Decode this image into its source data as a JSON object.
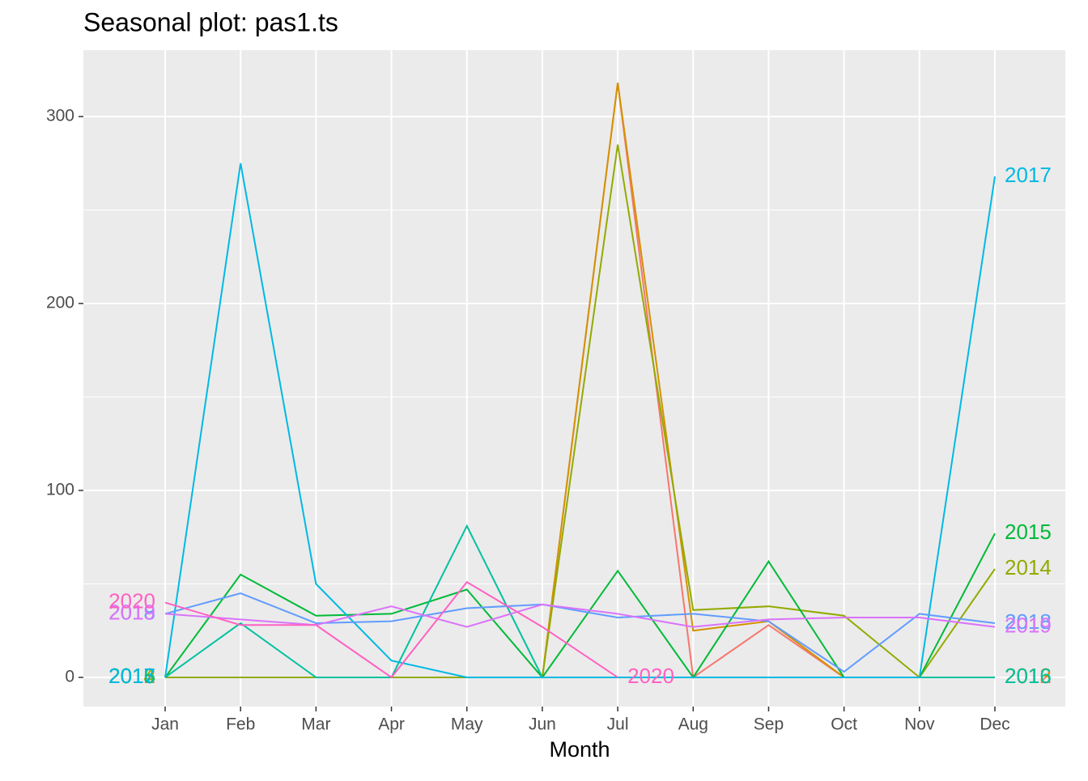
{
  "chart_data": {
    "type": "line",
    "title": "Seasonal plot: pas1.ts",
    "x_label": "Month",
    "categories": [
      "Jan",
      "Feb",
      "Mar",
      "Apr",
      "May",
      "Jun",
      "Jul",
      "Aug",
      "Sep",
      "Oct",
      "Nov",
      "Dec"
    ],
    "ylim": [
      -15.6,
      335.5
    ],
    "yticks": [
      0,
      100,
      200,
      300
    ],
    "grid": true,
    "series": [
      {
        "name": "2012",
        "color": "#F8766D",
        "values": [
          0,
          0,
          0,
          0,
          0,
          0,
          318,
          0,
          28,
          0,
          0,
          0
        ]
      },
      {
        "name": "2013",
        "color": "#D39200",
        "values": [
          0,
          0,
          0,
          0,
          0,
          0,
          318,
          25,
          30,
          0,
          0,
          0
        ]
      },
      {
        "name": "2014",
        "color": "#93AA00",
        "values": [
          0,
          0,
          0,
          0,
          0,
          0,
          285,
          36,
          38,
          33,
          0,
          58
        ]
      },
      {
        "name": "2015",
        "color": "#00BA38",
        "values": [
          0,
          55,
          33,
          34,
          47,
          0,
          57,
          0,
          62,
          0,
          0,
          77
        ]
      },
      {
        "name": "2016",
        "color": "#00C19F",
        "values": [
          0,
          29,
          0,
          0,
          81,
          0,
          0,
          0,
          0,
          0,
          0,
          0
        ]
      },
      {
        "name": "2017",
        "color": "#00B9E3",
        "values": [
          0,
          275,
          50,
          9,
          0,
          0,
          0,
          0,
          0,
          0,
          0,
          268
        ]
      },
      {
        "name": "2018",
        "color": "#619CFF",
        "values": [
          34,
          45,
          29,
          30,
          37,
          39,
          32,
          34,
          30,
          3,
          34,
          29
        ]
      },
      {
        "name": "2019",
        "color": "#DB72FB",
        "values": [
          34,
          31,
          28,
          38,
          27,
          39,
          34,
          27,
          31,
          32,
          32,
          27
        ]
      },
      {
        "name": "2020",
        "color": "#FF61C3",
        "values": [
          40,
          28,
          28,
          0,
          51,
          27,
          0,
          null,
          null,
          null,
          null,
          null
        ]
      }
    ]
  }
}
